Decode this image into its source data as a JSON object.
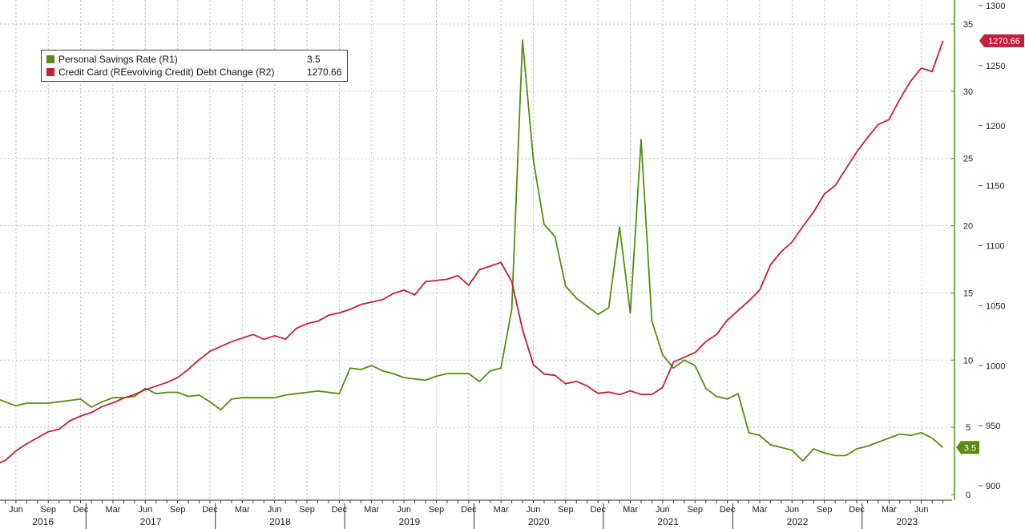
{
  "colors": {
    "savings": "#5a8a12",
    "credit": "#c41e3a",
    "grid": "#bdbdbd",
    "axis": "#5a8a12"
  },
  "legend": {
    "items": [
      {
        "name": "Personal Savings Rate (R1)",
        "value": "3.5",
        "color": "#5a8a12"
      },
      {
        "name": "Credit Card (REevolving Credit) Debt Change (R2)",
        "value": "1270.66",
        "color": "#c41e3a"
      }
    ]
  },
  "chart_data": {
    "type": "line",
    "x_axis": {
      "month_labels": [
        "Jun",
        "Sep",
        "Dec",
        "Mar",
        "Jun",
        "Sep",
        "Dec",
        "Mar",
        "Jun",
        "Sep",
        "Dec",
        "Mar",
        "Jun",
        "Sep",
        "Dec",
        "Mar",
        "Jun",
        "Sep",
        "Dec",
        "Mar",
        "Jun",
        "Sep",
        "Dec",
        "Mar",
        "Jun",
        "Sep",
        "Dec",
        "Mar",
        "Jun"
      ],
      "year_labels": [
        "2016",
        "2017",
        "2018",
        "2019",
        "2020",
        "2021",
        "2022",
        "2023"
      ],
      "start": "2016-04",
      "end": "2023-07"
    },
    "y_axis_savings": {
      "ticks": [
        0,
        5,
        10,
        15,
        20,
        25,
        30,
        35
      ],
      "range": [
        -0.3,
        35.8
      ]
    },
    "y_axis_credit": {
      "ticks": [
        900,
        950,
        1000,
        1050,
        1100,
        1150,
        1200,
        1250,
        1300
      ],
      "range": [
        893,
        1300
      ]
    },
    "end_labels": {
      "savings": "3.5",
      "credit": "1270.66"
    },
    "series": [
      {
        "name": "Personal Savings Rate (R1)",
        "axis": "savings",
        "points": [
          [
            "2016-04",
            7.2
          ],
          [
            "2016-05",
            6.9
          ],
          [
            "2016-06",
            6.6
          ],
          [
            "2016-07",
            6.8
          ],
          [
            "2016-08",
            6.8
          ],
          [
            "2016-09",
            6.8
          ],
          [
            "2016-10",
            6.9
          ],
          [
            "2016-11",
            7.0
          ],
          [
            "2016-12",
            7.1
          ],
          [
            "2017-01",
            6.5
          ],
          [
            "2017-02",
            6.9
          ],
          [
            "2017-03",
            7.2
          ],
          [
            "2017-04",
            7.2
          ],
          [
            "2017-05",
            7.3
          ],
          [
            "2017-06",
            7.9
          ],
          [
            "2017-07",
            7.5
          ],
          [
            "2017-08",
            7.6
          ],
          [
            "2017-09",
            7.6
          ],
          [
            "2017-10",
            7.3
          ],
          [
            "2017-11",
            7.4
          ],
          [
            "2017-12",
            6.9
          ],
          [
            "2018-01",
            6.3
          ],
          [
            "2018-02",
            7.1
          ],
          [
            "2018-03",
            7.2
          ],
          [
            "2018-04",
            7.2
          ],
          [
            "2018-05",
            7.2
          ],
          [
            "2018-06",
            7.2
          ],
          [
            "2018-07",
            7.4
          ],
          [
            "2018-08",
            7.5
          ],
          [
            "2018-09",
            7.6
          ],
          [
            "2018-10",
            7.7
          ],
          [
            "2018-11",
            7.6
          ],
          [
            "2018-12",
            7.5
          ],
          [
            "2019-01",
            9.4
          ],
          [
            "2019-02",
            9.3
          ],
          [
            "2019-03",
            9.6
          ],
          [
            "2019-04",
            9.2
          ],
          [
            "2019-05",
            9.0
          ],
          [
            "2019-06",
            8.7
          ],
          [
            "2019-07",
            8.6
          ],
          [
            "2019-08",
            8.5
          ],
          [
            "2019-09",
            8.8
          ],
          [
            "2019-10",
            9.0
          ],
          [
            "2019-11",
            9.0
          ],
          [
            "2019-12",
            9.0
          ],
          [
            "2020-01",
            8.4
          ],
          [
            "2020-02",
            9.2
          ],
          [
            "2020-03",
            9.4
          ],
          [
            "2020-04",
            13.8
          ],
          [
            "2020-05",
            33.8
          ],
          [
            "2020-06",
            24.9
          ],
          [
            "2020-07",
            20.1
          ],
          [
            "2020-08",
            19.2
          ],
          [
            "2020-09",
            15.5
          ],
          [
            "2020-10",
            14.6
          ],
          [
            "2020-11",
            14.0
          ],
          [
            "2020-12",
            13.4
          ],
          [
            "2021-01",
            13.9
          ],
          [
            "2021-02",
            19.9
          ],
          [
            "2021-03",
            13.5
          ],
          [
            "2021-04",
            26.4
          ],
          [
            "2021-05",
            12.9
          ],
          [
            "2021-06",
            10.4
          ],
          [
            "2021-07",
            9.4
          ],
          [
            "2021-08",
            10.0
          ],
          [
            "2021-09",
            9.6
          ],
          [
            "2021-10",
            7.9
          ],
          [
            "2021-11",
            7.3
          ],
          [
            "2021-12",
            7.1
          ],
          [
            "2022-01",
            7.5
          ],
          [
            "2022-02",
            4.6
          ],
          [
            "2022-03",
            4.4
          ],
          [
            "2022-04",
            3.7
          ],
          [
            "2022-05",
            3.5
          ],
          [
            "2022-06",
            3.3
          ],
          [
            "2022-07",
            2.5
          ],
          [
            "2022-08",
            3.4
          ],
          [
            "2022-09",
            3.1
          ],
          [
            "2022-10",
            2.9
          ],
          [
            "2022-11",
            2.9
          ],
          [
            "2022-12",
            3.4
          ],
          [
            "2023-01",
            3.6
          ],
          [
            "2023-02",
            3.9
          ],
          [
            "2023-03",
            4.2
          ],
          [
            "2023-04",
            4.5
          ],
          [
            "2023-05",
            4.4
          ],
          [
            "2023-06",
            4.6
          ],
          [
            "2023-07",
            4.2
          ],
          [
            "2023-08",
            3.5
          ]
        ]
      },
      {
        "name": "Credit Card (REevolving Credit) Debt Change (R2)",
        "axis": "credit",
        "points": [
          [
            "2016-04",
            917
          ],
          [
            "2016-05",
            921
          ],
          [
            "2016-06",
            929
          ],
          [
            "2016-07",
            935
          ],
          [
            "2016-08",
            940
          ],
          [
            "2016-09",
            945
          ],
          [
            "2016-10",
            947
          ],
          [
            "2016-11",
            954
          ],
          [
            "2016-12",
            958
          ],
          [
            "2017-01",
            961
          ],
          [
            "2017-02",
            966
          ],
          [
            "2017-03",
            969
          ],
          [
            "2017-04",
            973
          ],
          [
            "2017-05",
            976
          ],
          [
            "2017-06",
            980
          ],
          [
            "2017-07",
            983
          ],
          [
            "2017-08",
            986
          ],
          [
            "2017-09",
            990
          ],
          [
            "2017-10",
            997
          ],
          [
            "2017-11",
            1005
          ],
          [
            "2017-12",
            1012
          ],
          [
            "2018-01",
            1016
          ],
          [
            "2018-02",
            1020
          ],
          [
            "2018-03",
            1023
          ],
          [
            "2018-04",
            1026
          ],
          [
            "2018-05",
            1022
          ],
          [
            "2018-06",
            1025
          ],
          [
            "2018-07",
            1022
          ],
          [
            "2018-08",
            1031
          ],
          [
            "2018-09",
            1035
          ],
          [
            "2018-10",
            1037
          ],
          [
            "2018-11",
            1042
          ],
          [
            "2018-12",
            1044
          ],
          [
            "2019-01",
            1047
          ],
          [
            "2019-02",
            1051
          ],
          [
            "2019-03",
            1053
          ],
          [
            "2019-04",
            1055
          ],
          [
            "2019-05",
            1060
          ],
          [
            "2019-06",
            1063
          ],
          [
            "2019-07",
            1059
          ],
          [
            "2019-08",
            1070
          ],
          [
            "2019-09",
            1071
          ],
          [
            "2019-10",
            1072
          ],
          [
            "2019-11",
            1075
          ],
          [
            "2019-12",
            1067
          ],
          [
            "2020-01",
            1080
          ],
          [
            "2020-02",
            1083
          ],
          [
            "2020-03",
            1086
          ],
          [
            "2020-04",
            1070
          ],
          [
            "2020-05",
            1030
          ],
          [
            "2020-06",
            1001
          ],
          [
            "2020-07",
            993
          ],
          [
            "2020-08",
            992
          ],
          [
            "2020-09",
            985
          ],
          [
            "2020-10",
            987
          ],
          [
            "2020-11",
            983
          ],
          [
            "2020-12",
            977
          ],
          [
            "2021-01",
            978
          ],
          [
            "2021-02",
            976
          ],
          [
            "2021-03",
            979
          ],
          [
            "2021-04",
            976
          ],
          [
            "2021-05",
            976
          ],
          [
            "2021-06",
            982
          ],
          [
            "2021-07",
            1003
          ],
          [
            "2021-08",
            1007
          ],
          [
            "2021-09",
            1011
          ],
          [
            "2021-10",
            1020
          ],
          [
            "2021-11",
            1026
          ],
          [
            "2021-12",
            1038
          ],
          [
            "2022-01",
            1046
          ],
          [
            "2022-02",
            1054
          ],
          [
            "2022-03",
            1063
          ],
          [
            "2022-04",
            1084
          ],
          [
            "2022-05",
            1095
          ],
          [
            "2022-06",
            1103
          ],
          [
            "2022-07",
            1116
          ],
          [
            "2022-08",
            1128
          ],
          [
            "2022-09",
            1143
          ],
          [
            "2022-10",
            1150
          ],
          [
            "2022-11",
            1164
          ],
          [
            "2022-12",
            1178
          ],
          [
            "2023-01",
            1190
          ],
          [
            "2023-02",
            1201
          ],
          [
            "2023-03",
            1205
          ],
          [
            "2023-04",
            1222
          ],
          [
            "2023-05",
            1237
          ],
          [
            "2023-06",
            1248
          ],
          [
            "2023-07",
            1245
          ],
          [
            "2023-08",
            1270.66
          ]
        ]
      }
    ]
  }
}
